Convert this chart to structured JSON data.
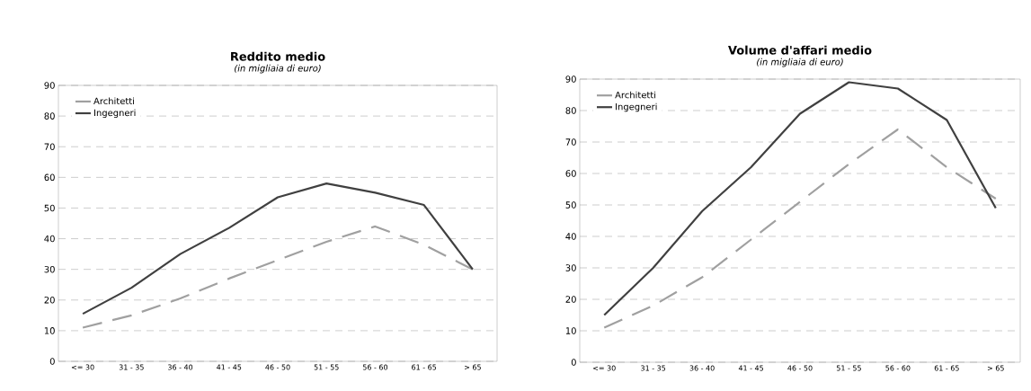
{
  "chart_data": [
    {
      "type": "line",
      "title": "Reddito medio",
      "subtitle": "(in migliaia di euro)",
      "categories": [
        "<= 30",
        "31 - 35",
        "36 - 40",
        "41 - 45",
        "46 - 50",
        "51 - 55",
        "56 - 60",
        "61 - 65",
        "> 65"
      ],
      "series": [
        {
          "name": "Architetti",
          "color": "#a0a0a0",
          "line_style": "dashed",
          "values": [
            11,
            15,
            20.5,
            27,
            33,
            39,
            44,
            38,
            30
          ]
        },
        {
          "name": "Ingegneri",
          "color": "#404040",
          "line_style": "solid",
          "values": [
            15.5,
            24,
            35,
            43.5,
            53.5,
            58,
            55,
            51,
            30
          ]
        }
      ],
      "ylim": [
        0,
        90
      ],
      "yticks": [
        0,
        10,
        20,
        30,
        40,
        50,
        60,
        70,
        80,
        90
      ],
      "grid": "y",
      "legend": "top left",
      "marker": "none"
    },
    {
      "type": "line",
      "title": "Volume d'affari medio",
      "subtitle": "(in migliaia di euro)",
      "categories": [
        "<= 30",
        "31 - 35",
        "36 - 40",
        "41 - 45",
        "46 - 50",
        "51 - 55",
        "56 - 60",
        "61 - 65",
        "> 65"
      ],
      "series": [
        {
          "name": "Architetti",
          "color": "#a0a0a0",
          "line_style": "dashed",
          "values": [
            11,
            18,
            27,
            39,
            51,
            63,
            74,
            62,
            52
          ]
        },
        {
          "name": "Ingegneri",
          "color": "#404040",
          "line_style": "solid",
          "values": [
            15,
            30,
            48,
            62,
            79,
            89,
            87,
            77,
            49
          ]
        }
      ],
      "ylim": [
        0,
        90
      ],
      "yticks": [
        0,
        10,
        20,
        30,
        40,
        50,
        60,
        70,
        80,
        90
      ],
      "grid": "y",
      "legend": "top left",
      "marker": "none"
    }
  ]
}
